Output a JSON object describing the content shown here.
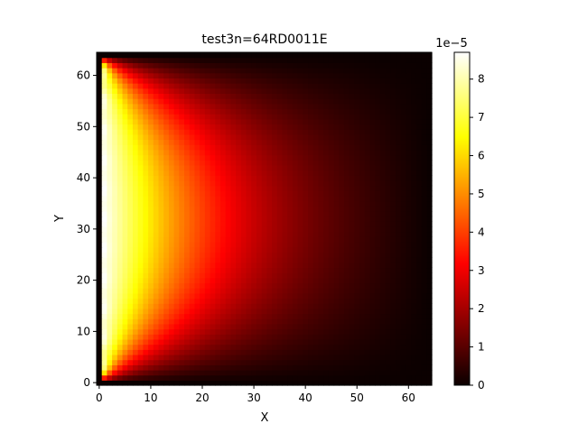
{
  "chart_data": {
    "type": "heatmap",
    "title": "test3n=64RD0011E",
    "xlabel": "X",
    "ylabel": "Y",
    "xlim": [
      -0.5,
      64.5
    ],
    "ylim": [
      -0.5,
      64.5
    ],
    "x_ticks": [
      0,
      10,
      20,
      30,
      40,
      50,
      60
    ],
    "y_ticks": [
      0,
      10,
      20,
      30,
      40,
      50,
      60
    ],
    "grid_size": 65,
    "colormap": "hot",
    "colorbar": {
      "min": 0,
      "max": 8.7,
      "ticks": [
        0,
        1,
        2,
        3,
        4,
        5,
        6,
        7,
        8
      ],
      "offset_label": "1e−5"
    },
    "field": {
      "description": "value is 0 on all boundaries (x=0, x=64, y=0, y=64) and peaks near the left edge at mid-height",
      "peak_value": 8.7,
      "peak_location": {
        "x": 1,
        "y": 32
      }
    }
  }
}
